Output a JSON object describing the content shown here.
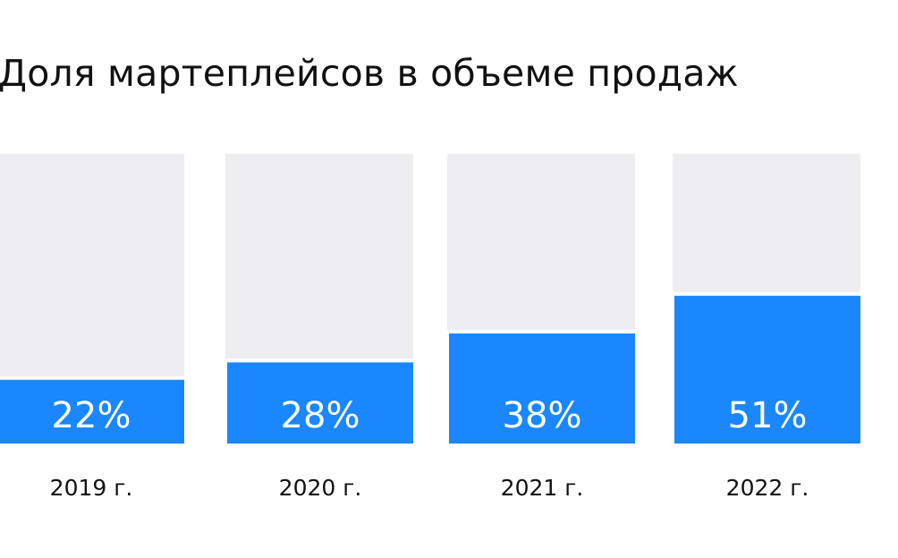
{
  "chart_data": {
    "type": "bar",
    "title": "Доля мартеплейсов в объеме продаж",
    "categories": [
      "2019 г.",
      "2020 г.",
      "2021  г.",
      "2022 г."
    ],
    "values": [
      22,
      28,
      38,
      51
    ],
    "value_labels": [
      "22%",
      "28%",
      "38%",
      "51%"
    ],
    "unit": "%",
    "ylim": [
      0,
      100
    ],
    "grid": false,
    "legend": "none",
    "colors": {
      "bar": "#1a87ff",
      "track": "#eeedf2",
      "value_text": "#ffffff",
      "category_text": "#111111",
      "title_text": "#111111"
    }
  }
}
